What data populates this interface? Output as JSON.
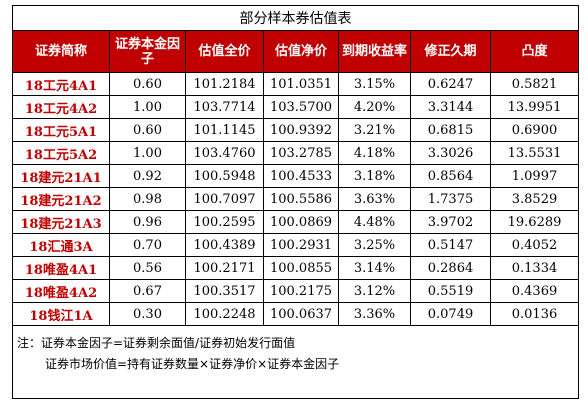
{
  "title": "部分样本券估值表",
  "headers": {
    "name": "证券简称",
    "factor": "证券本金因子",
    "full_price": "估值全价",
    "net_price": "估值净价",
    "ytm": "到期收益率",
    "duration": "修正久期",
    "convexity": "凸度"
  },
  "rows": [
    {
      "name": "18工元4A1",
      "factor": "0.60",
      "full_price": "101.2184",
      "net_price": "101.0351",
      "ytm": "3.15%",
      "duration": "0.6247",
      "convexity": "0.5821"
    },
    {
      "name": "18工元4A2",
      "factor": "1.00",
      "full_price": "103.7714",
      "net_price": "103.5700",
      "ytm": "4.20%",
      "duration": "3.3144",
      "convexity": "13.9951"
    },
    {
      "name": "18工元5A1",
      "factor": "0.60",
      "full_price": "101.1145",
      "net_price": "100.9392",
      "ytm": "3.21%",
      "duration": "0.6815",
      "convexity": "0.6900"
    },
    {
      "name": "18工元5A2",
      "factor": "1.00",
      "full_price": "103.4760",
      "net_price": "103.2785",
      "ytm": "4.18%",
      "duration": "3.3026",
      "convexity": "13.5531"
    },
    {
      "name": "18建元21A1",
      "factor": "0.92",
      "full_price": "100.5948",
      "net_price": "100.4533",
      "ytm": "3.18%",
      "duration": "0.8564",
      "convexity": "1.0997"
    },
    {
      "name": "18建元21A2",
      "factor": "0.98",
      "full_price": "100.7097",
      "net_price": "100.5586",
      "ytm": "3.63%",
      "duration": "1.7375",
      "convexity": "3.8529"
    },
    {
      "name": "18建元21A3",
      "factor": "0.96",
      "full_price": "100.2595",
      "net_price": "100.0869",
      "ytm": "4.48%",
      "duration": "3.9702",
      "convexity": "19.6289"
    },
    {
      "name": "18汇通3A",
      "factor": "0.70",
      "full_price": "100.4389",
      "net_price": "100.2931",
      "ytm": "3.25%",
      "duration": "0.5147",
      "convexity": "0.4052"
    },
    {
      "name": "18唯盈4A1",
      "factor": "0.56",
      "full_price": "100.2171",
      "net_price": "100.0855",
      "ytm": "3.14%",
      "duration": "0.2864",
      "convexity": "0.1334"
    },
    {
      "name": "18唯盈4A2",
      "factor": "0.67",
      "full_price": "100.3517",
      "net_price": "100.2175",
      "ytm": "3.12%",
      "duration": "0.5519",
      "convexity": "0.4369"
    },
    {
      "name": "18钱江1A",
      "factor": "0.30",
      "full_price": "100.2248",
      "net_price": "100.0637",
      "ytm": "3.36%",
      "duration": "0.0749",
      "convexity": "0.0136"
    }
  ],
  "notes": {
    "line1": "注：证券本金因子=证券剩余面值/证券初始发行面值",
    "line2": "证券市场价值=持有证券数量×证券净价×证券本金因子"
  },
  "colors": {
    "header_bg": "#c00000",
    "header_text": "#ffffff",
    "name_text": "#c00000"
  }
}
